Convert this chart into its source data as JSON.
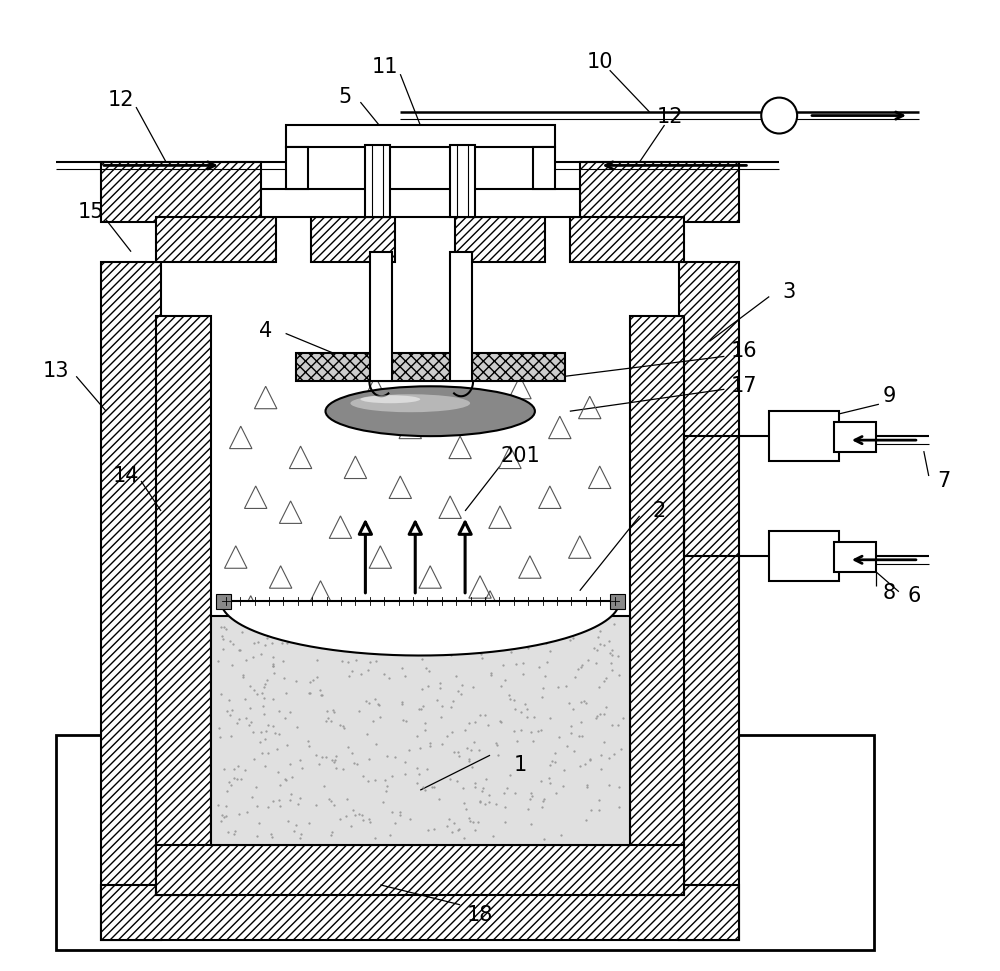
{
  "bg_color": "#ffffff",
  "lw": 1.5,
  "fs": 15,
  "gray_powder": "#d8d8d8",
  "gray_crystal": "#808080"
}
